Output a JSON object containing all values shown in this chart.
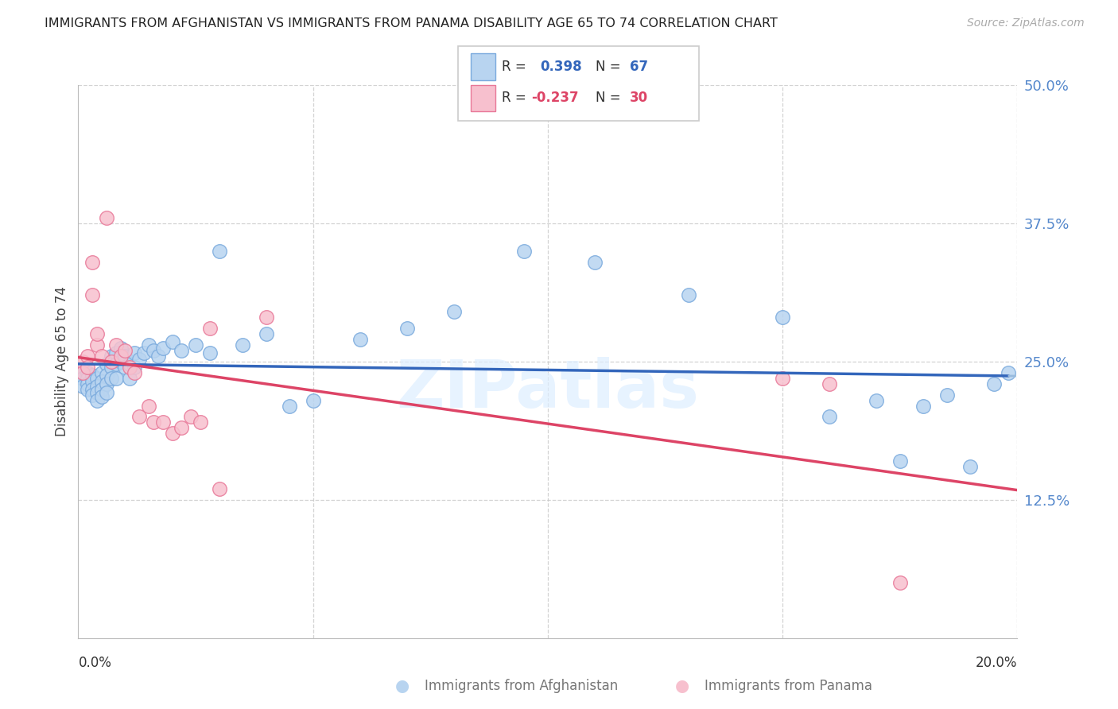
{
  "title": "IMMIGRANTS FROM AFGHANISTAN VS IMMIGRANTS FROM PANAMA DISABILITY AGE 65 TO 74 CORRELATION CHART",
  "source": "Source: ZipAtlas.com",
  "ylabel_label": "Disability Age 65 to 74",
  "xmin": 0.0,
  "xmax": 0.2,
  "ymin": 0.0,
  "ymax": 0.5,
  "yticks": [
    0.0,
    0.125,
    0.25,
    0.375,
    0.5
  ],
  "ytick_labels": [
    "",
    "12.5%",
    "25.0%",
    "37.5%",
    "50.0%"
  ],
  "grid_color": "#c8c8c8",
  "background_color": "#ffffff",
  "afghanistan_color": "#b8d4f0",
  "afghanistan_edge_color": "#7aaadd",
  "panama_color": "#f7c0ce",
  "panama_edge_color": "#e87898",
  "trendline_afghanistan_color": "#3366bb",
  "trendline_panama_color": "#dd4466",
  "trendline_extend_color": "#99bbdd",
  "watermark_text": "ZIPatlas",
  "watermark_color": "#ddeeff",
  "legend_box_color": "#ffffff",
  "legend_box_edge": "#cccccc",
  "af_R_text": "R =  ",
  "af_R_val": "0.398",
  "af_N_text": "N = ",
  "af_N_val": "67",
  "pan_R_text": "R = ",
  "pan_R_val": "-0.237",
  "pan_N_text": "N = ",
  "pan_N_val": "30",
  "val_color_af": "#3366bb",
  "val_color_pan": "#dd4466",
  "label_color": "#777777",
  "afghanistan_x": [
    0.001,
    0.001,
    0.001,
    0.002,
    0.002,
    0.002,
    0.002,
    0.003,
    0.003,
    0.003,
    0.003,
    0.004,
    0.004,
    0.004,
    0.004,
    0.005,
    0.005,
    0.005,
    0.005,
    0.006,
    0.006,
    0.006,
    0.006,
    0.007,
    0.007,
    0.007,
    0.008,
    0.008,
    0.008,
    0.009,
    0.009,
    0.01,
    0.01,
    0.011,
    0.011,
    0.012,
    0.012,
    0.013,
    0.014,
    0.015,
    0.016,
    0.017,
    0.018,
    0.02,
    0.022,
    0.025,
    0.028,
    0.03,
    0.035,
    0.04,
    0.045,
    0.05,
    0.06,
    0.07,
    0.08,
    0.095,
    0.11,
    0.13,
    0.15,
    0.16,
    0.17,
    0.175,
    0.18,
    0.185,
    0.19,
    0.195,
    0.198
  ],
  "afghanistan_y": [
    0.24,
    0.235,
    0.228,
    0.24,
    0.235,
    0.23,
    0.225,
    0.238,
    0.232,
    0.225,
    0.22,
    0.235,
    0.228,
    0.222,
    0.215,
    0.24,
    0.232,
    0.225,
    0.218,
    0.248,
    0.238,
    0.23,
    0.222,
    0.255,
    0.245,
    0.235,
    0.258,
    0.248,
    0.235,
    0.262,
    0.25,
    0.255,
    0.245,
    0.248,
    0.235,
    0.258,
    0.245,
    0.252,
    0.258,
    0.265,
    0.26,
    0.255,
    0.262,
    0.268,
    0.26,
    0.265,
    0.258,
    0.35,
    0.265,
    0.275,
    0.21,
    0.215,
    0.27,
    0.28,
    0.295,
    0.35,
    0.34,
    0.31,
    0.29,
    0.2,
    0.215,
    0.16,
    0.21,
    0.22,
    0.155,
    0.23,
    0.24
  ],
  "panama_x": [
    0.001,
    0.001,
    0.002,
    0.002,
    0.003,
    0.003,
    0.004,
    0.004,
    0.005,
    0.006,
    0.007,
    0.008,
    0.009,
    0.01,
    0.011,
    0.012,
    0.013,
    0.015,
    0.016,
    0.018,
    0.02,
    0.022,
    0.024,
    0.026,
    0.028,
    0.03,
    0.04,
    0.15,
    0.16,
    0.175
  ],
  "panama_y": [
    0.25,
    0.24,
    0.255,
    0.245,
    0.31,
    0.34,
    0.265,
    0.275,
    0.255,
    0.38,
    0.25,
    0.265,
    0.255,
    0.26,
    0.245,
    0.24,
    0.2,
    0.21,
    0.195,
    0.195,
    0.185,
    0.19,
    0.2,
    0.195,
    0.28,
    0.135,
    0.29,
    0.235,
    0.23,
    0.05
  ]
}
